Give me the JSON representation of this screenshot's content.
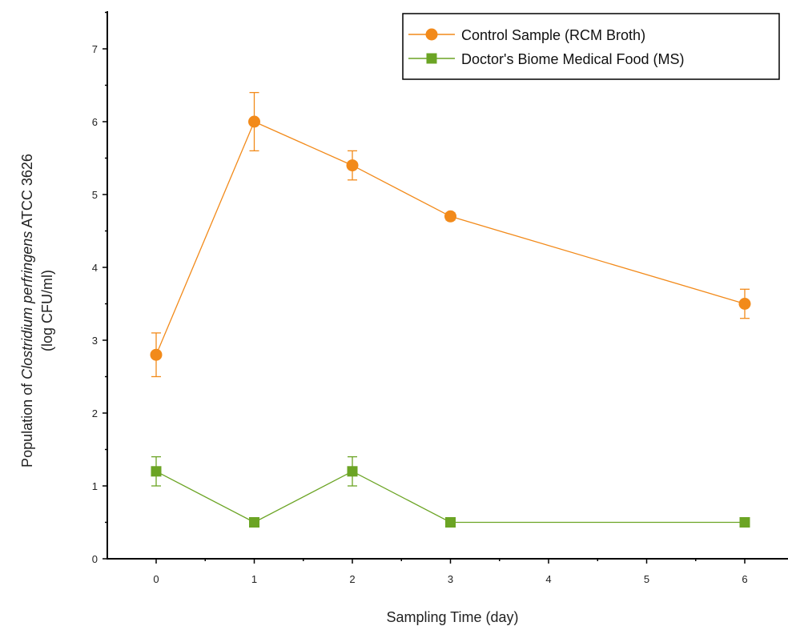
{
  "chart_data": {
    "type": "line",
    "xlabel": "Sampling Time (day)",
    "ylabel_line1_prefix": "Population of ",
    "ylabel_line1_italic": "Clostridium perfringens",
    "ylabel_line1_suffix": " ATCC 3626",
    "ylabel_line2": "(log CFU/ml)",
    "x_tick_labels": [
      "0",
      "1",
      "2",
      "3",
      "4",
      "5",
      "6"
    ],
    "y_ticks": [
      0,
      1,
      2,
      3,
      4,
      5,
      6,
      7
    ],
    "ylim": [
      0,
      7.5
    ],
    "grid": false,
    "legend_position": "top-right",
    "series": [
      {
        "name": "Control Sample (RCM Broth)",
        "color": "#F28A1A",
        "marker": "circle",
        "x": [
          0,
          1,
          2,
          3,
          6
        ],
        "y": [
          2.8,
          6.0,
          5.4,
          4.7,
          3.5
        ],
        "err": [
          0.3,
          0.4,
          0.2,
          0.05,
          0.2
        ]
      },
      {
        "name": "Doctor's Biome Medical Food (MS)",
        "color": "#6BA424",
        "marker": "square",
        "x": [
          0,
          1,
          2,
          3,
          6
        ],
        "y": [
          1.2,
          0.5,
          1.2,
          0.5,
          0.5
        ],
        "err": [
          0.2,
          0,
          0.2,
          0,
          0
        ]
      }
    ]
  }
}
